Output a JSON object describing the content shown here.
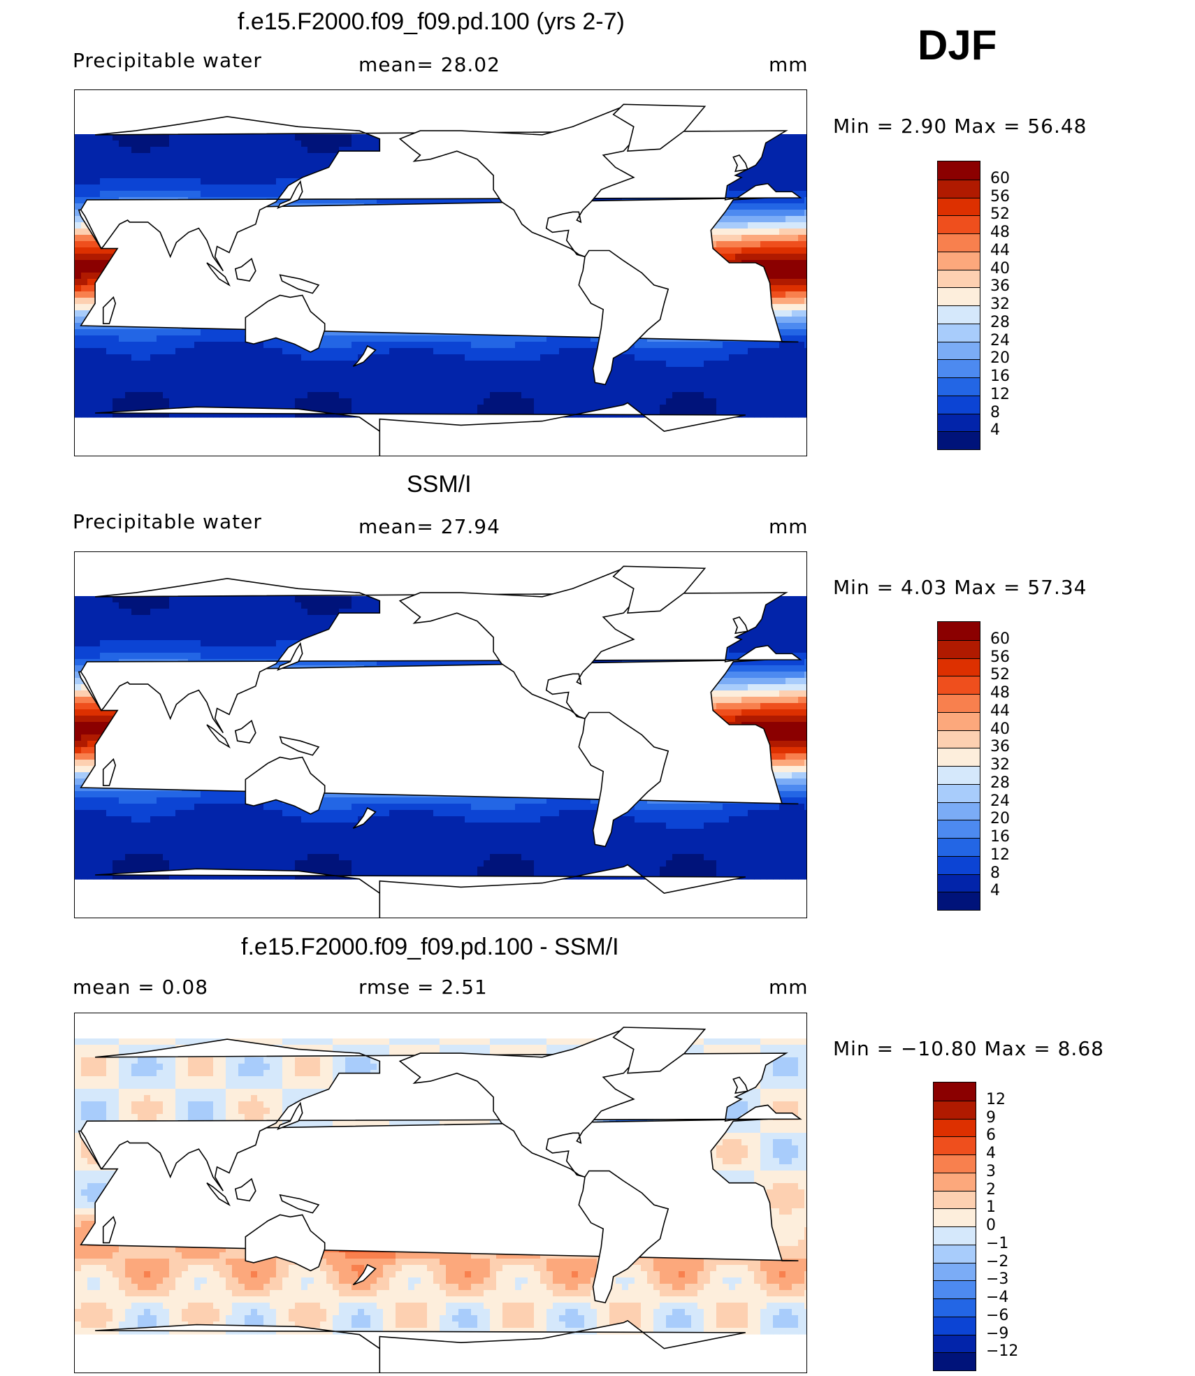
{
  "season": "DJF",
  "panels": [
    {
      "title": "f.e15.F2000.f09_f09.pd.100 (yrs 2-7)",
      "left_label": "Precipitable  water",
      "center_label": "mean=   28.02",
      "units": "mm",
      "minmax": "Min  =      2.90  Max  =     56.48",
      "colorbar": {
        "labels": [
          "60",
          "56",
          "52",
          "48",
          "44",
          "40",
          "36",
          "32",
          "28",
          "24",
          "20",
          "16",
          "12",
          "8",
          "4"
        ],
        "colors": [
          "#8b0000",
          "#b01a00",
          "#dd3000",
          "#ef4f1d",
          "#f8804e",
          "#fca87c",
          "#fdd0b1",
          "#fdeedc",
          "#d5e8fb",
          "#a8ccfb",
          "#7bacf6",
          "#4d8af0",
          "#2366e5",
          "#0c44d4",
          "#0224aa",
          "#00137a"
        ]
      },
      "map": "State"
    },
    {
      "title": "SSM/I",
      "left_label": "Precipitable  water",
      "center_label": "mean=   27.94",
      "units": "mm",
      "minmax": "Min  =      4.03  Max  =     57.34",
      "colorbar": {
        "labels": [
          "60",
          "56",
          "52",
          "48",
          "44",
          "40",
          "36",
          "32",
          "28",
          "24",
          "20",
          "16",
          "12",
          "8",
          "4"
        ],
        "colors": [
          "#8b0000",
          "#b01a00",
          "#dd3000",
          "#ef4f1d",
          "#f8804e",
          "#fca87c",
          "#fdd0b1",
          "#fdeedc",
          "#d5e8fb",
          "#a8ccfb",
          "#7bacf6",
          "#4d8af0",
          "#2366e5",
          "#0c44d4",
          "#0224aa",
          "#00137a"
        ]
      },
      "map": "State"
    },
    {
      "title": "f.e15.F2000.f09_f09.pd.100 - SSM/I",
      "left_label": "mean  =      0.08",
      "center_label": "rmse  =      2.51",
      "units": "mm",
      "minmax": "Min  =  −10.80  Max  =       8.68",
      "colorbar": {
        "labels": [
          "12",
          "9",
          "6",
          "4",
          "3",
          "2",
          "1",
          "0",
          "−1",
          "−2",
          "−3",
          "−4",
          "−6",
          "−9",
          "−12"
        ],
        "colors": [
          "#8b0000",
          "#b01a00",
          "#dd3000",
          "#ef4f1d",
          "#f8804e",
          "#fca87c",
          "#fdd0b1",
          "#fdeedc",
          "#d5e8fb",
          "#a8ccfb",
          "#7bacf6",
          "#4d8af0",
          "#2366e5",
          "#0c44d4",
          "#0224aa",
          "#00137a"
        ]
      },
      "map": "Difference"
    }
  ]
}
